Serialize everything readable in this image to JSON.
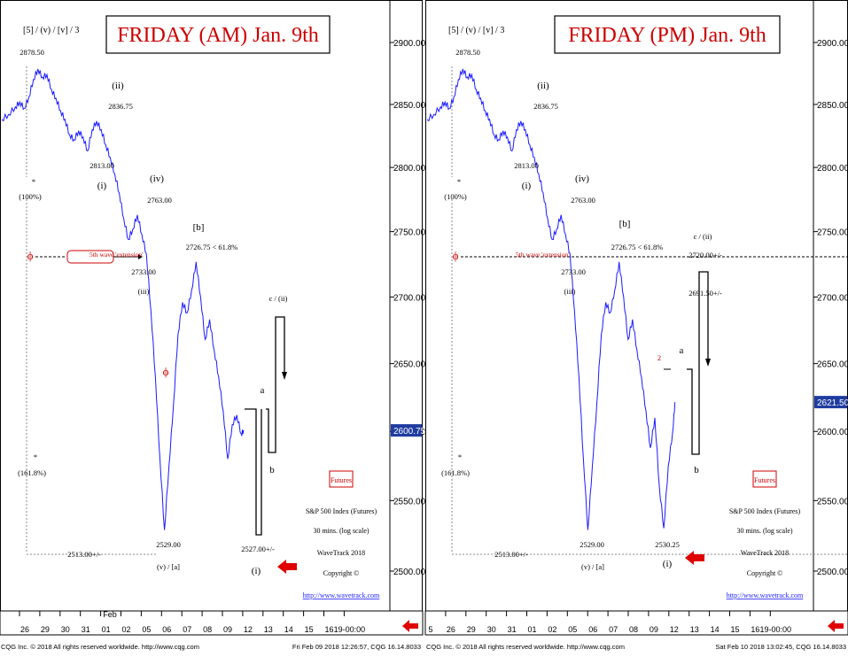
{
  "colors": {
    "price": "#1a1aff",
    "title": "#cc0000",
    "label_red": "#cc0000",
    "axis_badge": "#1f3ca0"
  },
  "panels": [
    {
      "id": "am",
      "title": "FRIDAY (AM) Jan. 9th",
      "header_labels": "[5] / (v) / [v] / 3",
      "wave_labels": [
        {
          "text": "2878.50"
        },
        {
          "text": "(ii)"
        },
        {
          "text": "2836.75"
        },
        {
          "text": "2813.00"
        },
        {
          "text": "(i)"
        },
        {
          "text": "(iv)"
        },
        {
          "text": "2763.00"
        },
        {
          "text": "[b]"
        },
        {
          "text": "2726.75 < 61.8%"
        },
        {
          "text": "2733.00"
        },
        {
          "text": "(iii)"
        },
        {
          "text": "2529.00"
        },
        {
          "text": "(v) / [a]"
        },
        {
          "text": "a"
        },
        {
          "text": "b"
        },
        {
          "text": "c / (ii)"
        },
        {
          "text": "2527.00+/-"
        },
        {
          "text": "(i)"
        },
        {
          "text": "*"
        },
        {
          "text": "(100%)"
        },
        {
          "text": "*"
        },
        {
          "text": "(161.8%)"
        },
        {
          "text": "2513.00+/-"
        },
        {
          "text": "5th wave 'extension'"
        }
      ],
      "price_axis": {
        "ticks": [
          "2900.00",
          "2850.00",
          "2800.00",
          "2750.00",
          "2700.00",
          "2650.00",
          "2600.00",
          "2550.00",
          "2500.00"
        ],
        "current": "2600.75"
      },
      "date_axis": {
        "ticks": [
          "26",
          "29",
          "30",
          "31",
          "01",
          "02",
          "05",
          "06",
          "07",
          "08",
          "09",
          "12",
          "13",
          "14",
          "15",
          "16",
          "19-00:00"
        ],
        "month": "Feb"
      },
      "info": {
        "badge": "Futures",
        "index": "S&P 500 Index (Futures)",
        "interval": "30 mins. (log scale)",
        "source": "WaveTrack 2018",
        "copyright": "Copyright ©",
        "url": "http://www.wavetrack.com"
      },
      "footer_left": "CQG Inc. © 2018 All rights reserved worldwide. http://www.cqg.com",
      "footer_right": "Fri Feb 09 2018 12:26:57, CQG 16.14.8033"
    },
    {
      "id": "pm",
      "title": "FRIDAY (PM) Jan. 9th",
      "header_labels": "[5] / (v) / [v] / 3",
      "wave_labels": [
        {
          "text": "2878.50"
        },
        {
          "text": "(ii)"
        },
        {
          "text": "2836.75"
        },
        {
          "text": "2813.00"
        },
        {
          "text": "(i)"
        },
        {
          "text": "(iv)"
        },
        {
          "text": "2763.00"
        },
        {
          "text": "[b]"
        },
        {
          "text": "2726.75 < 61.8%"
        },
        {
          "text": "2733.00"
        },
        {
          "text": "(iii)"
        },
        {
          "text": "2529.00"
        },
        {
          "text": "(v) / [a]"
        },
        {
          "text": "a"
        },
        {
          "text": "b"
        },
        {
          "text": "c / (ii)"
        },
        {
          "text": "2720.00+/-"
        },
        {
          "text": "2691.50+/-"
        },
        {
          "text": "2530.25"
        },
        {
          "text": "(i)"
        },
        {
          "text": "2"
        },
        {
          "text": "*"
        },
        {
          "text": "(100%)"
        },
        {
          "text": "*"
        },
        {
          "text": "(161.8%)"
        },
        {
          "text": "2513.00+/-"
        },
        {
          "text": "5th wave 'extension'"
        }
      ],
      "price_axis": {
        "ticks": [
          "2900.00",
          "2850.00",
          "2800.00",
          "2750.00",
          "2700.00",
          "2650.00",
          "2600.00",
          "2550.00",
          "2500.00"
        ],
        "current": "2621.50"
      },
      "date_axis": {
        "ticks": [
          "5",
          "26",
          "29",
          "30",
          "31",
          "01",
          "02",
          "05",
          "06",
          "07",
          "08",
          "09",
          "12",
          "13",
          "14",
          "15",
          "16",
          "19-00:00"
        ],
        "month": "Feb"
      },
      "info": {
        "badge": "Futures",
        "index": "S&P 500 Index (Futures)",
        "interval": "30 mins. (log scale)",
        "source": "WaveTrack 2018",
        "copyright": "Copyright ©",
        "url": "http://www.wavetrack.com"
      },
      "footer_left": "CQG Inc. © 2018 All rights reserved worldwide. http://www.cqg.com",
      "footer_right": "Sat Feb 10 2018 13:02:45, CQG 16.14.8033"
    }
  ],
  "chart_data": [
    {
      "type": "line",
      "title": "FRIDAY (AM) Jan. 9th",
      "ylim": [
        2495,
        2915
      ],
      "series": [
        {
          "name": "S&P 500 Index (Futures)",
          "points": [
            [
              0,
              2838
            ],
            [
              3,
              2842
            ],
            [
              6,
              2848
            ],
            [
              8,
              2852
            ],
            [
              10,
              2847
            ],
            [
              12,
              2856
            ],
            [
              14,
              2870
            ],
            [
              16,
              2878.5
            ],
            [
              18,
              2872
            ],
            [
              20,
              2874
            ],
            [
              22,
              2862
            ],
            [
              24,
              2855
            ],
            [
              26,
              2845
            ],
            [
              28,
              2838
            ],
            [
              30,
              2826
            ],
            [
              32,
              2822
            ],
            [
              34,
              2829
            ],
            [
              36,
              2824
            ],
            [
              38,
              2813
            ],
            [
              40,
              2830
            ],
            [
              42,
              2836.75
            ],
            [
              44,
              2830
            ],
            [
              46,
              2818
            ],
            [
              48,
              2808
            ],
            [
              50,
              2795
            ],
            [
              52,
              2780
            ],
            [
              54,
              2760
            ],
            [
              56,
              2744
            ],
            [
              58,
              2752
            ],
            [
              60,
              2763
            ],
            [
              62,
              2748
            ],
            [
              64,
              2733
            ],
            [
              66,
              2690
            ],
            [
              68,
              2640
            ],
            [
              70,
              2580
            ],
            [
              72,
              2529
            ],
            [
              74,
              2575
            ],
            [
              76,
              2620
            ],
            [
              78,
              2672
            ],
            [
              80,
              2696
            ],
            [
              82,
              2688
            ],
            [
              84,
              2705
            ],
            [
              86,
              2726.75
            ],
            [
              88,
              2700
            ],
            [
              90,
              2668
            ],
            [
              92,
              2683
            ],
            [
              94,
              2660
            ],
            [
              96,
              2640
            ],
            [
              98,
              2615
            ],
            [
              100,
              2580
            ],
            [
              102,
              2605
            ],
            [
              104,
              2612
            ],
            [
              106,
              2598
            ],
            [
              107,
              2600.75
            ]
          ]
        }
      ],
      "projection": [
        {
          "label": "a",
          "value": 2618
        },
        {
          "label": "b",
          "value": 2584
        },
        {
          "label": "c / (ii)",
          "value": 2688
        },
        {
          "label": "(i)",
          "value": 2527
        }
      ]
    },
    {
      "type": "line",
      "title": "FRIDAY (PM) Jan. 9th",
      "ylim": [
        2495,
        2915
      ],
      "series": [
        {
          "name": "S&P 500 Index (Futures)",
          "points": [
            [
              0,
              2838
            ],
            [
              3,
              2842
            ],
            [
              6,
              2848
            ],
            [
              8,
              2852
            ],
            [
              10,
              2847
            ],
            [
              12,
              2856
            ],
            [
              14,
              2870
            ],
            [
              16,
              2878.5
            ],
            [
              18,
              2872
            ],
            [
              20,
              2874
            ],
            [
              22,
              2862
            ],
            [
              24,
              2855
            ],
            [
              26,
              2845
            ],
            [
              28,
              2838
            ],
            [
              30,
              2826
            ],
            [
              32,
              2822
            ],
            [
              34,
              2829
            ],
            [
              36,
              2824
            ],
            [
              38,
              2813
            ],
            [
              40,
              2830
            ],
            [
              42,
              2836.75
            ],
            [
              44,
              2830
            ],
            [
              46,
              2818
            ],
            [
              48,
              2808
            ],
            [
              50,
              2795
            ],
            [
              52,
              2780
            ],
            [
              54,
              2760
            ],
            [
              56,
              2744
            ],
            [
              58,
              2752
            ],
            [
              60,
              2763
            ],
            [
              62,
              2748
            ],
            [
              64,
              2733
            ],
            [
              66,
              2690
            ],
            [
              68,
              2640
            ],
            [
              70,
              2580
            ],
            [
              72,
              2529
            ],
            [
              74,
              2575
            ],
            [
              76,
              2620
            ],
            [
              78,
              2672
            ],
            [
              80,
              2696
            ],
            [
              82,
              2688
            ],
            [
              84,
              2705
            ],
            [
              86,
              2726.75
            ],
            [
              88,
              2700
            ],
            [
              90,
              2668
            ],
            [
              92,
              2683
            ],
            [
              94,
              2660
            ],
            [
              96,
              2640
            ],
            [
              98,
              2615
            ],
            [
              100,
              2588
            ],
            [
              102,
              2610
            ],
            [
              104,
              2560
            ],
            [
              106,
              2530.25
            ],
            [
              108,
              2575
            ],
            [
              110,
              2600
            ],
            [
              111,
              2621.5
            ]
          ]
        }
      ],
      "projection": [
        {
          "label": "a",
          "value": 2645
        },
        {
          "label": "b",
          "value": 2584
        },
        {
          "label": "c / (ii)",
          "value": 2720
        }
      ]
    }
  ]
}
